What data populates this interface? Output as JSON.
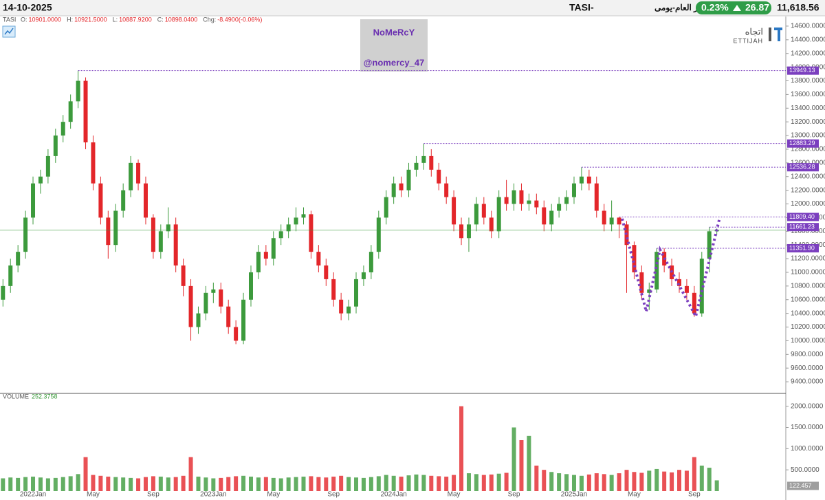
{
  "header": {
    "date": "14-10-2025",
    "symbol": "TASI",
    "separator": "-",
    "name": "المؤشر العام-يومى",
    "change_pct": "0.23%",
    "change": "26.87",
    "last": "11,618.56"
  },
  "legend": {
    "symbol": "TASI",
    "items": [
      {
        "label": "O:",
        "value": "10901.0000"
      },
      {
        "label": "H:",
        "value": "10921.5000"
      },
      {
        "label": "L:",
        "value": "10887.9200"
      },
      {
        "label": "C:",
        "value": "10898.0400"
      },
      {
        "label": "Chg:",
        "value": "-8.4900(-0.06%)"
      }
    ]
  },
  "watermark": {
    "line1": "NoMeRcY",
    "line2": "@nomercy_47"
  },
  "logo": {
    "arabic": "اتجاه",
    "latin": "ETTIJAH"
  },
  "chart_data": {
    "type": "candlestick",
    "up_color": "#3c9a3c",
    "down_color": "#e3262a",
    "level_color": "#7b3fbf",
    "last_color": "#3c9a3c",
    "categories": [
      null,
      null,
      null,
      null,
      "2022Jan",
      null,
      null,
      null,
      null,
      null,
      null,
      null,
      "May",
      null,
      null,
      null,
      null,
      null,
      null,
      null,
      "Sep",
      null,
      null,
      null,
      null,
      null,
      null,
      null,
      "2023Jan",
      null,
      null,
      null,
      null,
      null,
      null,
      null,
      "May",
      null,
      null,
      null,
      null,
      null,
      null,
      null,
      "Sep",
      null,
      null,
      null,
      null,
      null,
      null,
      null,
      "2024Jan",
      null,
      null,
      null,
      null,
      null,
      null,
      null,
      "May",
      null,
      null,
      null,
      null,
      null,
      null,
      null,
      "Sep",
      null,
      null,
      null,
      null,
      null,
      null,
      null,
      "2025Jan",
      null,
      null,
      null,
      null,
      null,
      null,
      null,
      "May",
      null,
      null,
      null,
      null,
      null,
      null,
      null,
      "Sep",
      null,
      null,
      null
    ],
    "open": [
      10600,
      10800,
      11100,
      11300,
      11800,
      12300,
      12400,
      12700,
      13000,
      13200,
      13500,
      13800,
      12900,
      12300,
      11800,
      11400,
      11900,
      12200,
      12600,
      12300,
      11800,
      11300,
      11600,
      11700,
      11100,
      10800,
      10200,
      10400,
      10700,
      10750,
      10500,
      10200,
      10000,
      10600,
      11000,
      11300,
      11200,
      11500,
      11600,
      11700,
      11800,
      11850,
      11300,
      11100,
      10900,
      10600,
      10400,
      10500,
      10900,
      11000,
      11300,
      11800,
      12100,
      12300,
      12200,
      12500,
      12600,
      12700,
      12500,
      12300,
      12100,
      11700,
      11500,
      11700,
      12000,
      11800,
      11600,
      12100,
      12000,
      12200,
      12000,
      12050,
      11950,
      11700,
      11900,
      12000,
      12100,
      12300,
      12400,
      12300,
      11900,
      11700,
      11800,
      11700,
      11400,
      11000,
      10700,
      10750,
      11300,
      11100,
      10900,
      10800,
      10700,
      10400,
      11200,
      11600
    ],
    "high": [
      10900,
      11200,
      11400,
      11900,
      12400,
      12500,
      12800,
      13100,
      13300,
      13600,
      13949.13,
      13850,
      13000,
      12400,
      11900,
      12000,
      12300,
      12700,
      12650,
      12400,
      11850,
      11700,
      11950,
      11800,
      11200,
      10900,
      10500,
      10800,
      10850,
      10850,
      10600,
      10300,
      10700,
      11100,
      11400,
      11400,
      11600,
      11700,
      11800,
      11950,
      11950,
      11900,
      11400,
      11200,
      11000,
      10700,
      10600,
      11000,
      11100,
      11400,
      11900,
      12200,
      12400,
      12400,
      12600,
      12700,
      12883.29,
      12800,
      12600,
      12400,
      12200,
      11800,
      11800,
      12100,
      12100,
      11900,
      12200,
      12350,
      12300,
      12300,
      12150,
      12150,
      12050,
      12000,
      12100,
      12200,
      12400,
      12536.28,
      12500,
      12400,
      12000,
      12050,
      11809.4,
      11750,
      11450,
      11100,
      10850,
      11351.9,
      11350,
      11200,
      11000,
      10900,
      10800,
      11300,
      11661.23,
      11640
    ],
    "low": [
      10500,
      10700,
      11000,
      11200,
      11700,
      12150,
      12300,
      12600,
      12900,
      13100,
      13400,
      12800,
      12200,
      11700,
      11200,
      11300,
      11800,
      12100,
      12200,
      11700,
      11200,
      11200,
      11500,
      11000,
      10650,
      10000,
      10100,
      10300,
      10550,
      10400,
      10100,
      9950,
      9950,
      10500,
      10900,
      11100,
      11100,
      11400,
      11500,
      11600,
      11700,
      11200,
      11000,
      10800,
      10500,
      10300,
      10300,
      10400,
      10800,
      10900,
      11200,
      11700,
      12000,
      12100,
      12100,
      12400,
      12500,
      12400,
      12200,
      12000,
      11600,
      11400,
      11300,
      11600,
      11700,
      11500,
      11500,
      11900,
      11900,
      11900,
      11900,
      11850,
      11600,
      11600,
      11800,
      11900,
      12000,
      12200,
      12200,
      11800,
      11600,
      11600,
      11500,
      10700,
      10900,
      10600,
      10450,
      10700,
      11000,
      10800,
      10700,
      10600,
      10350,
      10350,
      11000,
      11550
    ],
    "close": [
      10800,
      11100,
      11300,
      11800,
      12300,
      12400,
      12700,
      13000,
      13200,
      13500,
      13800,
      12900,
      12300,
      11800,
      11400,
      11900,
      12200,
      12600,
      12300,
      11800,
      11300,
      11600,
      11700,
      11100,
      10800,
      10200,
      10400,
      10700,
      10750,
      10500,
      10200,
      10000,
      10600,
      11000,
      11300,
      11200,
      11500,
      11600,
      11700,
      11800,
      11850,
      11300,
      11100,
      10900,
      10600,
      10400,
      10500,
      10900,
      11000,
      11300,
      11800,
      12100,
      12300,
      12200,
      12500,
      12600,
      12700,
      12500,
      12300,
      12100,
      11700,
      11500,
      11700,
      12000,
      11800,
      11600,
      12100,
      12000,
      12200,
      12000,
      12050,
      11950,
      11700,
      11900,
      12000,
      12100,
      12300,
      12400,
      12300,
      11900,
      11700,
      11800,
      11700,
      11400,
      11000,
      10700,
      10750,
      11300,
      11100,
      10900,
      10800,
      10700,
      10400,
      11200,
      11600,
      11618.56
    ],
    "ylim": [
      9230,
      14700
    ],
    "yticks": [
      {
        "value": 9400,
        "label": "9400.0000"
      },
      {
        "value": 9600,
        "label": "9600.0000"
      },
      {
        "value": 9800,
        "label": "9800.0000"
      },
      {
        "value": 10000,
        "label": "10000.0000"
      },
      {
        "value": 10200,
        "label": "10200.0000"
      },
      {
        "value": 10400,
        "label": "10400.0000"
      },
      {
        "value": 10600,
        "label": "10600.0000"
      },
      {
        "value": 10800,
        "label": "10800.0000"
      },
      {
        "value": 11000,
        "label": "11000.0000"
      },
      {
        "value": 11200,
        "label": "11200.0000"
      },
      {
        "value": 11400,
        "label": "11400.0000"
      },
      {
        "value": 11600,
        "label": "11600.0000"
      },
      {
        "value": 11800,
        "label": "11800.0000"
      },
      {
        "value": 12000,
        "label": "12000.0000"
      },
      {
        "value": 12200,
        "label": "12200.0000"
      },
      {
        "value": 12400,
        "label": "12400.0000"
      },
      {
        "value": 12600,
        "label": "12600.0000"
      },
      {
        "value": 12800,
        "label": "12800.0000"
      },
      {
        "value": 13000,
        "label": "13000.0000"
      },
      {
        "value": 13200,
        "label": "13200.0000"
      },
      {
        "value": 13400,
        "label": "13400.0000"
      },
      {
        "value": 13600,
        "label": "13600.0000"
      },
      {
        "value": 13800,
        "label": "13800.0000"
      },
      {
        "value": 14000,
        "label": "14000.0000"
      },
      {
        "value": 14200,
        "label": "14200.0000"
      },
      {
        "value": 14400,
        "label": "14400.0000"
      },
      {
        "value": 14600,
        "label": "14600.0000"
      }
    ],
    "levels": [
      13949.13,
      12883.29,
      12536.28,
      {
        "value": 11809.4,
        "label": "11809.40"
      },
      11661.23,
      {
        "value": 11351.9,
        "label": "11351.90"
      }
    ],
    "volume": {
      "label": "VOLUME",
      "marker": 122.457,
      "values": [
        300,
        320,
        310,
        330,
        340,
        320,
        300,
        310,
        330,
        350,
        400,
        800,
        380,
        360,
        340,
        330,
        320,
        310,
        300,
        330,
        350,
        340,
        320,
        330,
        360,
        800,
        340,
        320,
        300,
        310,
        330,
        350,
        360,
        340,
        320,
        330,
        310,
        300,
        320,
        330,
        340,
        350,
        330,
        320,
        340,
        360,
        330,
        320,
        310,
        330,
        350,
        380,
        360,
        340,
        370,
        390,
        380,
        360,
        350,
        340,
        380,
        2000,
        420,
        400,
        380,
        390,
        410,
        430,
        1500,
        1200,
        1300,
        600,
        500,
        450,
        420,
        400,
        380,
        360,
        390,
        420,
        400,
        380,
        420,
        500,
        450,
        430,
        480,
        520,
        460,
        440,
        500,
        480,
        800,
        600,
        550,
        252.3758
      ],
      "ylim": [
        0,
        2270
      ],
      "yticks": [
        {
          "value": 500,
          "label": "500.0000"
        },
        {
          "value": 1000,
          "label": "1000.0000"
        },
        {
          "value": 1500,
          "label": "1500.0000"
        },
        {
          "value": 2000,
          "label": "2000.0000"
        }
      ]
    }
  }
}
